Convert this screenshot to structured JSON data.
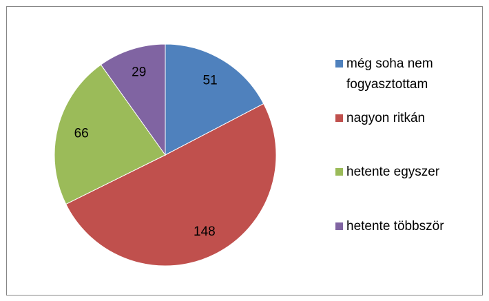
{
  "chart_data": {
    "type": "pie",
    "categories": [
      "még soha nem fogyasztottam",
      "nagyon ritkán",
      "hetente egyszer",
      "hetente többször"
    ],
    "values": [
      51,
      148,
      66,
      29
    ],
    "colors": [
      "#4f81bd",
      "#c0504d",
      "#9bbb59",
      "#8064a2"
    ],
    "legend": "right"
  }
}
